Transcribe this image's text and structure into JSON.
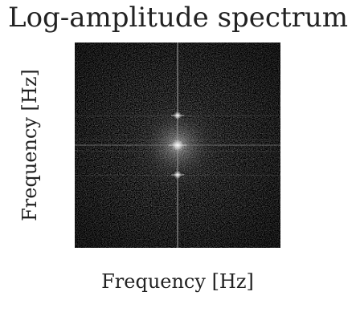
{
  "chart_data": {
    "type": "heatmap",
    "title": "Log-amplitude spectrum",
    "xlabel": "Frequency [Hz]",
    "ylabel": "Frequency [Hz]",
    "colormap": "gray",
    "background": "#000000",
    "tick_labels": "none",
    "grid": false,
    "legend": "none",
    "features": [
      {
        "kind": "dc-peak",
        "position": "center"
      },
      {
        "kind": "vertical-streak",
        "position": "through center"
      },
      {
        "kind": "horizontal-streak",
        "position": "through center"
      },
      {
        "kind": "symmetric-peaks",
        "position": "above and below center on vertical axis"
      }
    ]
  }
}
